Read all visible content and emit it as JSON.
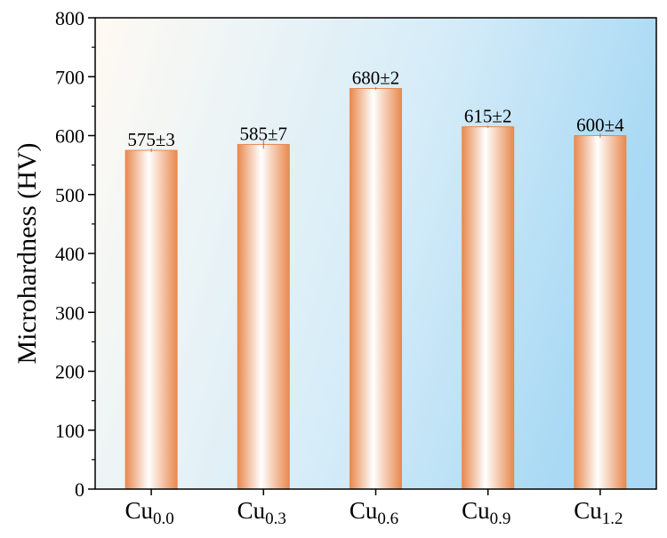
{
  "chart_data": {
    "type": "bar",
    "title": "",
    "xlabel": "",
    "ylabel": "Microhardness (HV)",
    "ylim": [
      0,
      800
    ],
    "yticks": [
      0,
      100,
      200,
      300,
      400,
      500,
      600,
      700,
      800
    ],
    "categories": [
      {
        "base": "Cu",
        "sub": "0.0"
      },
      {
        "base": "Cu",
        "sub": "0.3"
      },
      {
        "base": "Cu",
        "sub": "0.6"
      },
      {
        "base": "Cu",
        "sub": "0.9"
      },
      {
        "base": "Cu",
        "sub": "1.2"
      }
    ],
    "values": [
      575,
      585,
      680,
      615,
      600
    ],
    "errors": [
      3,
      7,
      2,
      2,
      4
    ],
    "data_labels": [
      "575±3",
      "585±7",
      "680±2",
      "615±2",
      "600±4"
    ],
    "grid": false,
    "legend": "none",
    "colors": {
      "bar_edge": "#e8894f",
      "bar_center": "#ffffff",
      "background_left": "#fffaf3",
      "background_right": "#a9d9f4",
      "axis": "#000000"
    }
  }
}
